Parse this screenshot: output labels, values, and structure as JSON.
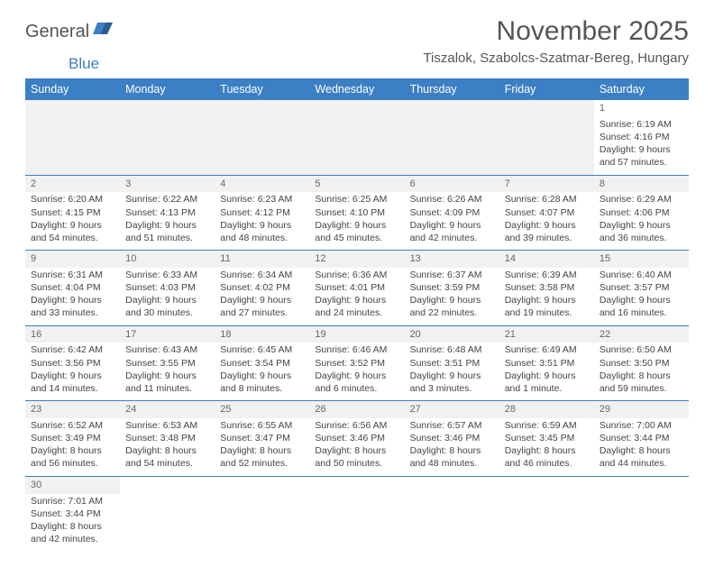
{
  "logo": {
    "text1": "General",
    "text2": "Blue"
  },
  "title": "November 2025",
  "subtitle": "Tiszalok, Szabolcs-Szatmar-Bereg, Hungary",
  "weekdays": [
    "Sunday",
    "Monday",
    "Tuesday",
    "Wednesday",
    "Thursday",
    "Friday",
    "Saturday"
  ],
  "colors": {
    "header_bg": "#3b7fc4",
    "header_fg": "#ffffff",
    "text": "#444444",
    "title_color": "#555555",
    "row_sep": "#3b7fc4",
    "shade": "#f1f1f1"
  },
  "weeks": [
    [
      null,
      null,
      null,
      null,
      null,
      null,
      {
        "n": "1",
        "sr": "Sunrise: 6:19 AM",
        "ss": "Sunset: 4:16 PM",
        "d1": "Daylight: 9 hours",
        "d2": "and 57 minutes."
      }
    ],
    [
      {
        "n": "2",
        "sr": "Sunrise: 6:20 AM",
        "ss": "Sunset: 4:15 PM",
        "d1": "Daylight: 9 hours",
        "d2": "and 54 minutes."
      },
      {
        "n": "3",
        "sr": "Sunrise: 6:22 AM",
        "ss": "Sunset: 4:13 PM",
        "d1": "Daylight: 9 hours",
        "d2": "and 51 minutes."
      },
      {
        "n": "4",
        "sr": "Sunrise: 6:23 AM",
        "ss": "Sunset: 4:12 PM",
        "d1": "Daylight: 9 hours",
        "d2": "and 48 minutes."
      },
      {
        "n": "5",
        "sr": "Sunrise: 6:25 AM",
        "ss": "Sunset: 4:10 PM",
        "d1": "Daylight: 9 hours",
        "d2": "and 45 minutes."
      },
      {
        "n": "6",
        "sr": "Sunrise: 6:26 AM",
        "ss": "Sunset: 4:09 PM",
        "d1": "Daylight: 9 hours",
        "d2": "and 42 minutes."
      },
      {
        "n": "7",
        "sr": "Sunrise: 6:28 AM",
        "ss": "Sunset: 4:07 PM",
        "d1": "Daylight: 9 hours",
        "d2": "and 39 minutes."
      },
      {
        "n": "8",
        "sr": "Sunrise: 6:29 AM",
        "ss": "Sunset: 4:06 PM",
        "d1": "Daylight: 9 hours",
        "d2": "and 36 minutes."
      }
    ],
    [
      {
        "n": "9",
        "sr": "Sunrise: 6:31 AM",
        "ss": "Sunset: 4:04 PM",
        "d1": "Daylight: 9 hours",
        "d2": "and 33 minutes."
      },
      {
        "n": "10",
        "sr": "Sunrise: 6:33 AM",
        "ss": "Sunset: 4:03 PM",
        "d1": "Daylight: 9 hours",
        "d2": "and 30 minutes."
      },
      {
        "n": "11",
        "sr": "Sunrise: 6:34 AM",
        "ss": "Sunset: 4:02 PM",
        "d1": "Daylight: 9 hours",
        "d2": "and 27 minutes."
      },
      {
        "n": "12",
        "sr": "Sunrise: 6:36 AM",
        "ss": "Sunset: 4:01 PM",
        "d1": "Daylight: 9 hours",
        "d2": "and 24 minutes."
      },
      {
        "n": "13",
        "sr": "Sunrise: 6:37 AM",
        "ss": "Sunset: 3:59 PM",
        "d1": "Daylight: 9 hours",
        "d2": "and 22 minutes."
      },
      {
        "n": "14",
        "sr": "Sunrise: 6:39 AM",
        "ss": "Sunset: 3:58 PM",
        "d1": "Daylight: 9 hours",
        "d2": "and 19 minutes."
      },
      {
        "n": "15",
        "sr": "Sunrise: 6:40 AM",
        "ss": "Sunset: 3:57 PM",
        "d1": "Daylight: 9 hours",
        "d2": "and 16 minutes."
      }
    ],
    [
      {
        "n": "16",
        "sr": "Sunrise: 6:42 AM",
        "ss": "Sunset: 3:56 PM",
        "d1": "Daylight: 9 hours",
        "d2": "and 14 minutes."
      },
      {
        "n": "17",
        "sr": "Sunrise: 6:43 AM",
        "ss": "Sunset: 3:55 PM",
        "d1": "Daylight: 9 hours",
        "d2": "and 11 minutes."
      },
      {
        "n": "18",
        "sr": "Sunrise: 6:45 AM",
        "ss": "Sunset: 3:54 PM",
        "d1": "Daylight: 9 hours",
        "d2": "and 8 minutes."
      },
      {
        "n": "19",
        "sr": "Sunrise: 6:46 AM",
        "ss": "Sunset: 3:52 PM",
        "d1": "Daylight: 9 hours",
        "d2": "and 6 minutes."
      },
      {
        "n": "20",
        "sr": "Sunrise: 6:48 AM",
        "ss": "Sunset: 3:51 PM",
        "d1": "Daylight: 9 hours",
        "d2": "and 3 minutes."
      },
      {
        "n": "21",
        "sr": "Sunrise: 6:49 AM",
        "ss": "Sunset: 3:51 PM",
        "d1": "Daylight: 9 hours",
        "d2": "and 1 minute."
      },
      {
        "n": "22",
        "sr": "Sunrise: 6:50 AM",
        "ss": "Sunset: 3:50 PM",
        "d1": "Daylight: 8 hours",
        "d2": "and 59 minutes."
      }
    ],
    [
      {
        "n": "23",
        "sr": "Sunrise: 6:52 AM",
        "ss": "Sunset: 3:49 PM",
        "d1": "Daylight: 8 hours",
        "d2": "and 56 minutes."
      },
      {
        "n": "24",
        "sr": "Sunrise: 6:53 AM",
        "ss": "Sunset: 3:48 PM",
        "d1": "Daylight: 8 hours",
        "d2": "and 54 minutes."
      },
      {
        "n": "25",
        "sr": "Sunrise: 6:55 AM",
        "ss": "Sunset: 3:47 PM",
        "d1": "Daylight: 8 hours",
        "d2": "and 52 minutes."
      },
      {
        "n": "26",
        "sr": "Sunrise: 6:56 AM",
        "ss": "Sunset: 3:46 PM",
        "d1": "Daylight: 8 hours",
        "d2": "and 50 minutes."
      },
      {
        "n": "27",
        "sr": "Sunrise: 6:57 AM",
        "ss": "Sunset: 3:46 PM",
        "d1": "Daylight: 8 hours",
        "d2": "and 48 minutes."
      },
      {
        "n": "28",
        "sr": "Sunrise: 6:59 AM",
        "ss": "Sunset: 3:45 PM",
        "d1": "Daylight: 8 hours",
        "d2": "and 46 minutes."
      },
      {
        "n": "29",
        "sr": "Sunrise: 7:00 AM",
        "ss": "Sunset: 3:44 PM",
        "d1": "Daylight: 8 hours",
        "d2": "and 44 minutes."
      }
    ],
    [
      {
        "n": "30",
        "sr": "Sunrise: 7:01 AM",
        "ss": "Sunset: 3:44 PM",
        "d1": "Daylight: 8 hours",
        "d2": "and 42 minutes."
      },
      null,
      null,
      null,
      null,
      null,
      null
    ]
  ]
}
